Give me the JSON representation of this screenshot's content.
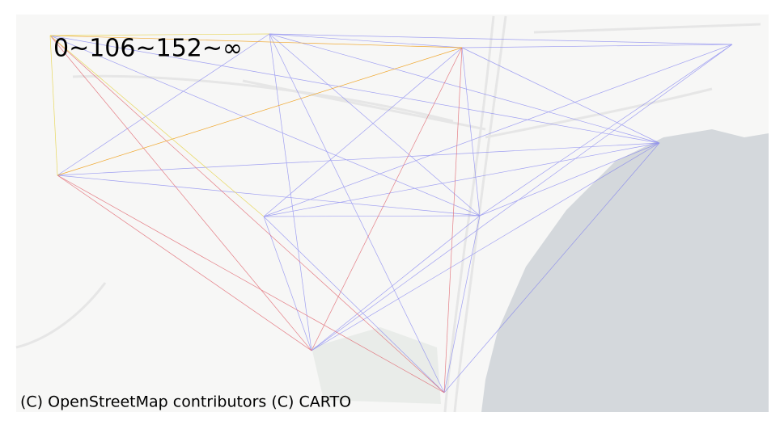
{
  "title": "0~106~152~∞",
  "attribution": "(C) OpenStreetMap contributors (C) CARTO"
}
